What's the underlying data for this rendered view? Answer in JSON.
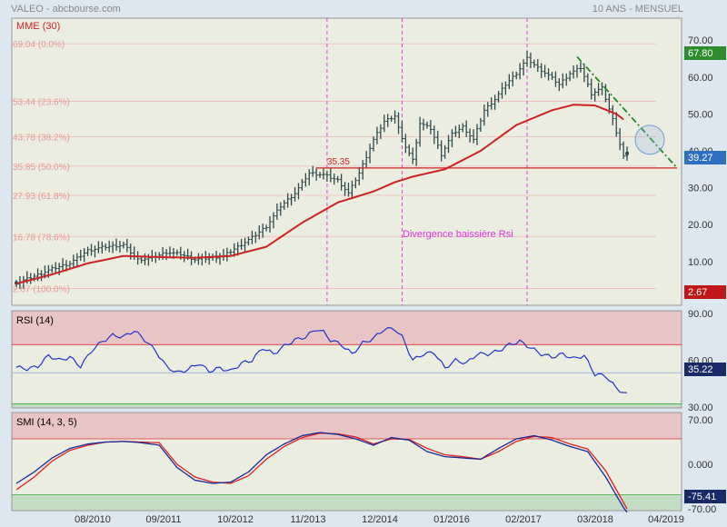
{
  "header": {
    "title": "VALEO - abcbourse.com",
    "period": "10 ANS - MENSUEL"
  },
  "colors": {
    "panel_bg": "#ecede1",
    "price_bars": "#2f4a4a",
    "mme": "#cc2222",
    "rsi_line": "#2233cc",
    "smi_k": "#1a2a99",
    "smi_signal": "#dd2222",
    "fibo_text": "#e89a9a",
    "fibo_line": "#f0b8b8",
    "vline": "#dd33dd",
    "trend": "#228822",
    "overbought": "#e8c4c4",
    "oversold": "#c4dcc4",
    "badge_green": "#2e8b2e",
    "badge_blue": "#2f6fbf",
    "badge_red": "#c01818",
    "badge_navy": "#1a2a66"
  },
  "chart_data": [
    {
      "type": "candlestick",
      "title": "MME (30)",
      "ylim": [
        0,
        75
      ],
      "y_ticks": [
        "70.00",
        "60.00",
        "50.00",
        "40.00",
        "30.00",
        "20.00",
        "10.00"
      ],
      "x_labels": [
        "08/2010",
        "09/2011",
        "10/2012",
        "11/2013",
        "12/2014",
        "01/2016",
        "02/2017",
        "03/2018",
        "04/2019"
      ],
      "fibonacci": [
        {
          "label": "69.04 (0.0%)",
          "value": 69.04
        },
        {
          "label": "53.44 (23.6%)",
          "value": 53.44
        },
        {
          "label": "43.78 (38.2%)",
          "value": 43.78
        },
        {
          "label": "35.85 (50.0%)",
          "value": 35.85
        },
        {
          "label": "27.93 (61.8%)",
          "value": 27.93
        },
        {
          "label": "16.78 (78.6%)",
          "value": 16.78
        },
        {
          "label": "2.67 (100.0%)",
          "value": 2.67
        }
      ],
      "support_level": {
        "label": "35.35",
        "value": 35.35
      },
      "annotation": "Divergence baissière Rsi",
      "price_badges": {
        "high": "67.80",
        "last": "39.27",
        "low": "2.67"
      },
      "close_anchors": [
        [
          0,
          4.2
        ],
        [
          5,
          6.0
        ],
        [
          10,
          8.0
        ],
        [
          15,
          9.5
        ],
        [
          20,
          13.0
        ],
        [
          25,
          14.0
        ],
        [
          30,
          14.5
        ],
        [
          34,
          10.5
        ],
        [
          38,
          11.0
        ],
        [
          42,
          12.5
        ],
        [
          46,
          12.0
        ],
        [
          50,
          10.5
        ],
        [
          54,
          11.0
        ],
        [
          58,
          11.5
        ],
        [
          62,
          14.0
        ],
        [
          66,
          16.5
        ],
        [
          70,
          19.5
        ],
        [
          74,
          25.0
        ],
        [
          78,
          28.5
        ],
        [
          82,
          34.0
        ],
        [
          86,
          33.5
        ],
        [
          90,
          32.0
        ],
        [
          93,
          28.5
        ],
        [
          96,
          34.0
        ],
        [
          100,
          43.0
        ],
        [
          103,
          48.0
        ],
        [
          106,
          49.5
        ],
        [
          108,
          43.0
        ],
        [
          111,
          37.5
        ],
        [
          113,
          47.5
        ],
        [
          116,
          46.0
        ],
        [
          119,
          39.0
        ],
        [
          122,
          44.5
        ],
        [
          125,
          46.5
        ],
        [
          128,
          43.0
        ],
        [
          131,
          51.0
        ],
        [
          134,
          54.0
        ],
        [
          137,
          58.0
        ],
        [
          140,
          61.0
        ],
        [
          143,
          65.0
        ],
        [
          146,
          62.5
        ],
        [
          149,
          60.5
        ],
        [
          152,
          58.0
        ],
        [
          155,
          61.0
        ],
        [
          158,
          62.5
        ],
        [
          161,
          55.5
        ],
        [
          164,
          57.0
        ],
        [
          167,
          48.5
        ],
        [
          170,
          38.5
        ],
        [
          171,
          39.27
        ]
      ],
      "mme_anchors": [
        [
          0,
          4.0
        ],
        [
          10,
          6.5
        ],
        [
          20,
          9.5
        ],
        [
          30,
          11.5
        ],
        [
          40,
          11.2
        ],
        [
          50,
          11.0
        ],
        [
          60,
          11.5
        ],
        [
          70,
          14.0
        ],
        [
          80,
          20.5
        ],
        [
          90,
          26.0
        ],
        [
          100,
          29.0
        ],
        [
          106,
          31.5
        ],
        [
          111,
          33.0
        ],
        [
          120,
          35.0
        ],
        [
          130,
          40.0
        ],
        [
          140,
          47.0
        ],
        [
          150,
          51.0
        ],
        [
          156,
          52.5
        ],
        [
          162,
          52.3
        ],
        [
          168,
          50.0
        ],
        [
          170,
          48.5
        ]
      ],
      "highlighted_points": [
        [
          0,
          4.2
        ],
        [
          171,
          39.27
        ]
      ]
    },
    {
      "type": "line",
      "title": "RSI (14)",
      "ylim": [
        30,
        90
      ],
      "y_ticks": [
        "90.00",
        "60.00",
        "30.00"
      ],
      "bands": {
        "overbought": 70,
        "oversold": 30,
        "mid": 50
      },
      "last_value": "35.22",
      "anchors": [
        [
          0,
          55.5
        ],
        [
          3,
          54.5
        ],
        [
          6,
          56
        ],
        [
          9,
          63
        ],
        [
          12,
          60
        ],
        [
          15,
          62
        ],
        [
          18,
          56
        ],
        [
          21,
          66
        ],
        [
          24,
          72
        ],
        [
          27,
          76
        ],
        [
          30,
          75
        ],
        [
          33,
          79
        ],
        [
          36,
          73
        ],
        [
          39,
          66
        ],
        [
          42,
          56
        ],
        [
          45,
          52
        ],
        [
          48,
          54
        ],
        [
          51,
          58
        ],
        [
          54,
          53
        ],
        [
          57,
          55
        ],
        [
          60,
          53
        ],
        [
          63,
          58
        ],
        [
          66,
          60
        ],
        [
          69,
          68
        ],
        [
          72,
          64
        ],
        [
          75,
          69
        ],
        [
          78,
          73
        ],
        [
          81,
          75
        ],
        [
          84,
          80
        ],
        [
          86,
          78
        ],
        [
          88,
          73
        ],
        [
          91,
          70
        ],
        [
          94,
          64
        ],
        [
          97,
          71
        ],
        [
          100,
          74
        ],
        [
          103,
          80
        ],
        [
          106,
          80
        ],
        [
          108,
          75
        ],
        [
          111,
          60
        ],
        [
          114,
          64
        ],
        [
          117,
          65
        ],
        [
          120,
          55
        ],
        [
          123,
          60
        ],
        [
          126,
          58
        ],
        [
          129,
          64
        ],
        [
          132,
          64
        ],
        [
          135,
          66
        ],
        [
          138,
          70
        ],
        [
          141,
          72
        ],
        [
          144,
          68
        ],
        [
          147,
          64
        ],
        [
          150,
          62
        ],
        [
          153,
          64
        ],
        [
          156,
          61
        ],
        [
          159,
          63
        ],
        [
          162,
          51
        ],
        [
          165,
          50
        ],
        [
          168,
          42
        ],
        [
          171,
          38
        ]
      ]
    },
    {
      "type": "line",
      "title": "SMI (14, 3, 5)",
      "ylim": [
        -70,
        70
      ],
      "y_ticks": [
        "70.00",
        "0.000",
        "-70.00"
      ],
      "bands": {
        "overbought": 40,
        "oversold": -40
      },
      "last_value": "-75.41",
      "series": [
        {
          "anchors": [
            [
              0,
              -30
            ],
            [
              5,
              -12
            ],
            [
              10,
              10
            ],
            [
              15,
              25
            ],
            [
              20,
              32
            ],
            [
              25,
              35
            ],
            [
              30,
              36
            ],
            [
              35,
              34
            ],
            [
              40,
              30
            ],
            [
              45,
              -5
            ],
            [
              50,
              -25
            ],
            [
              55,
              -30
            ],
            [
              60,
              -28
            ],
            [
              65,
              -12
            ],
            [
              70,
              15
            ],
            [
              75,
              32
            ],
            [
              80,
              45
            ],
            [
              85,
              50
            ],
            [
              90,
              47
            ],
            [
              95,
              40
            ],
            [
              100,
              30
            ],
            [
              105,
              42
            ],
            [
              110,
              38
            ],
            [
              115,
              20
            ],
            [
              120,
              12
            ],
            [
              125,
              10
            ],
            [
              130,
              8
            ],
            [
              135,
              25
            ],
            [
              140,
              40
            ],
            [
              145,
              45
            ],
            [
              150,
              38
            ],
            [
              155,
              28
            ],
            [
              160,
              20
            ],
            [
              165,
              -20
            ],
            [
              170,
              -68
            ],
            [
              171,
              -75.41
            ]
          ]
        },
        {
          "anchors": [
            [
              0,
              -40
            ],
            [
              5,
              -20
            ],
            [
              10,
              5
            ],
            [
              15,
              22
            ],
            [
              20,
              30
            ],
            [
              25,
              35
            ],
            [
              30,
              36
            ],
            [
              35,
              35
            ],
            [
              40,
              34
            ],
            [
              45,
              0
            ],
            [
              50,
              -20
            ],
            [
              55,
              -28
            ],
            [
              60,
              -30
            ],
            [
              65,
              -18
            ],
            [
              70,
              8
            ],
            [
              75,
              28
            ],
            [
              80,
              42
            ],
            [
              85,
              49
            ],
            [
              90,
              48
            ],
            [
              95,
              43
            ],
            [
              100,
              32
            ],
            [
              105,
              40
            ],
            [
              110,
              39
            ],
            [
              115,
              25
            ],
            [
              120,
              15
            ],
            [
              125,
              12
            ],
            [
              130,
              8
            ],
            [
              135,
              20
            ],
            [
              140,
              36
            ],
            [
              145,
              44
            ],
            [
              150,
              42
            ],
            [
              155,
              32
            ],
            [
              160,
              24
            ],
            [
              165,
              -10
            ],
            [
              170,
              -60
            ],
            [
              171,
              -70
            ]
          ]
        }
      ]
    }
  ]
}
